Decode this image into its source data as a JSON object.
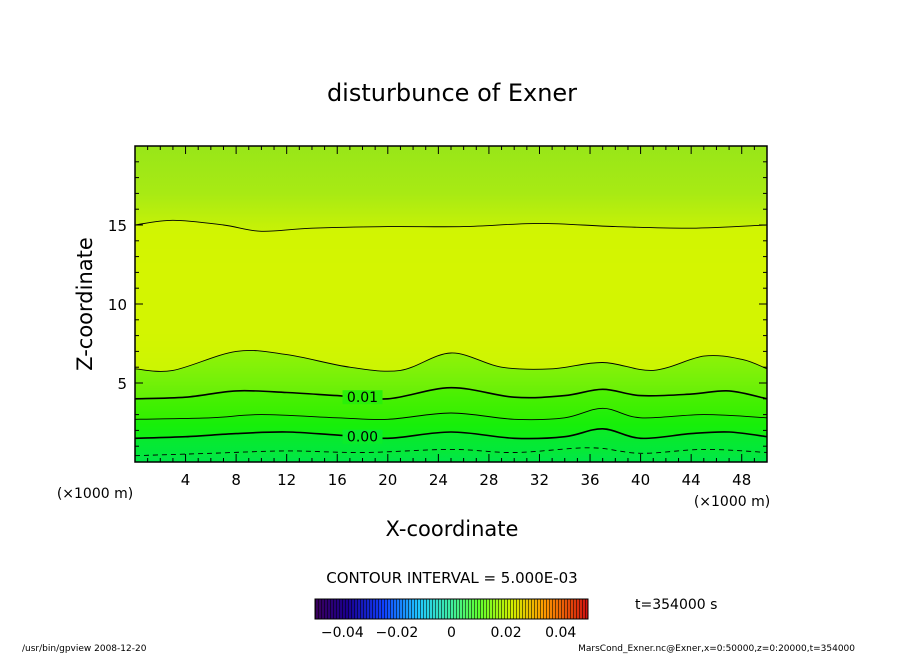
{
  "chart_data": {
    "type": "contour",
    "title": "disturbunce of Exner",
    "xlabel": "X-coordinate",
    "ylabel": "Z-coordinate",
    "x_unit": "(×1000 m)",
    "y_unit": "(×1000 m)",
    "xlim": [
      0,
      50
    ],
    "ylim": [
      0,
      20
    ],
    "x_ticks": [
      4,
      8,
      12,
      16,
      20,
      24,
      28,
      32,
      36,
      40,
      44,
      48
    ],
    "y_ticks": [
      5,
      10,
      15
    ],
    "contour_interval": "CONTOUR INTERVAL = 5.000E-03",
    "time_label": "t=354000 s",
    "colorbar": {
      "min": -0.05,
      "max": 0.05,
      "tick_labels": [
        "-0.04",
        "-0.02",
        "0",
        "0.02",
        "0.04"
      ],
      "tick_values": [
        -0.04,
        -0.02,
        0,
        0.02,
        0.04
      ]
    },
    "contours": [
      {
        "level": -0.005,
        "label": "",
        "style": "dashed",
        "points": [
          [
            0,
            0.4
          ],
          [
            6,
            0.55
          ],
          [
            12,
            0.7
          ],
          [
            18,
            0.6
          ],
          [
            25,
            0.8
          ],
          [
            30,
            0.6
          ],
          [
            36,
            0.9
          ],
          [
            40,
            0.55
          ],
          [
            45,
            0.8
          ],
          [
            50,
            0.6
          ]
        ]
      },
      {
        "level": 0.0,
        "label": "0.00",
        "style": "bold",
        "points": [
          [
            0,
            1.5
          ],
          [
            4,
            1.6
          ],
          [
            8,
            1.8
          ],
          [
            12,
            1.9
          ],
          [
            16,
            1.7
          ],
          [
            20,
            1.5
          ],
          [
            25,
            1.9
          ],
          [
            30,
            1.5
          ],
          [
            34,
            1.6
          ],
          [
            37,
            2.1
          ],
          [
            40,
            1.5
          ],
          [
            44,
            1.8
          ],
          [
            47,
            1.9
          ],
          [
            50,
            1.6
          ]
        ]
      },
      {
        "level": 0.005,
        "label": "",
        "style": "thin",
        "points": [
          [
            0,
            2.7
          ],
          [
            6,
            2.8
          ],
          [
            10,
            3.0
          ],
          [
            16,
            2.8
          ],
          [
            20,
            2.7
          ],
          [
            25,
            3.1
          ],
          [
            30,
            2.7
          ],
          [
            34,
            2.8
          ],
          [
            37,
            3.4
          ],
          [
            40,
            2.8
          ],
          [
            45,
            3.0
          ],
          [
            50,
            2.8
          ]
        ]
      },
      {
        "level": 0.01,
        "label": "0.01",
        "style": "bold",
        "points": [
          [
            0,
            4.0
          ],
          [
            4,
            4.1
          ],
          [
            8,
            4.5
          ],
          [
            12,
            4.4
          ],
          [
            16,
            4.2
          ],
          [
            20,
            4.0
          ],
          [
            25,
            4.7
          ],
          [
            30,
            4.1
          ],
          [
            34,
            4.2
          ],
          [
            37,
            4.6
          ],
          [
            40,
            4.2
          ],
          [
            44,
            4.3
          ],
          [
            47,
            4.5
          ],
          [
            50,
            4.0
          ]
        ]
      },
      {
        "level": 0.015,
        "label": "",
        "style": "thin",
        "points": [
          [
            0,
            5.9
          ],
          [
            3,
            5.8
          ],
          [
            8,
            7.0
          ],
          [
            12,
            6.8
          ],
          [
            17,
            6.0
          ],
          [
            21,
            5.8
          ],
          [
            25,
            6.9
          ],
          [
            29,
            6.0
          ],
          [
            33,
            5.9
          ],
          [
            37,
            6.3
          ],
          [
            41,
            5.8
          ],
          [
            45,
            6.7
          ],
          [
            48,
            6.5
          ],
          [
            50,
            5.9
          ]
        ]
      },
      {
        "level": 0.02,
        "label": "",
        "style": "thin",
        "points": [
          [
            0,
            15.0
          ],
          [
            3,
            15.3
          ],
          [
            7,
            15.0
          ],
          [
            10,
            14.6
          ],
          [
            14,
            14.8
          ],
          [
            20,
            14.9
          ],
          [
            26,
            14.9
          ],
          [
            32,
            15.1
          ],
          [
            38,
            14.9
          ],
          [
            44,
            14.8
          ],
          [
            50,
            15.0
          ]
        ]
      }
    ]
  },
  "footer": {
    "left": "/usr/bin/gpview   2008-12-20",
    "right": "MarsCond_Exner.nc@Exner,x=0:50000,z=0:20000,t=354000"
  },
  "colors": {
    "low": "#00e800",
    "mid_green": "#2ef000",
    "light_green": "#7fef10",
    "yellow_green": "#baf00a",
    "yellow": "#ddf600"
  }
}
